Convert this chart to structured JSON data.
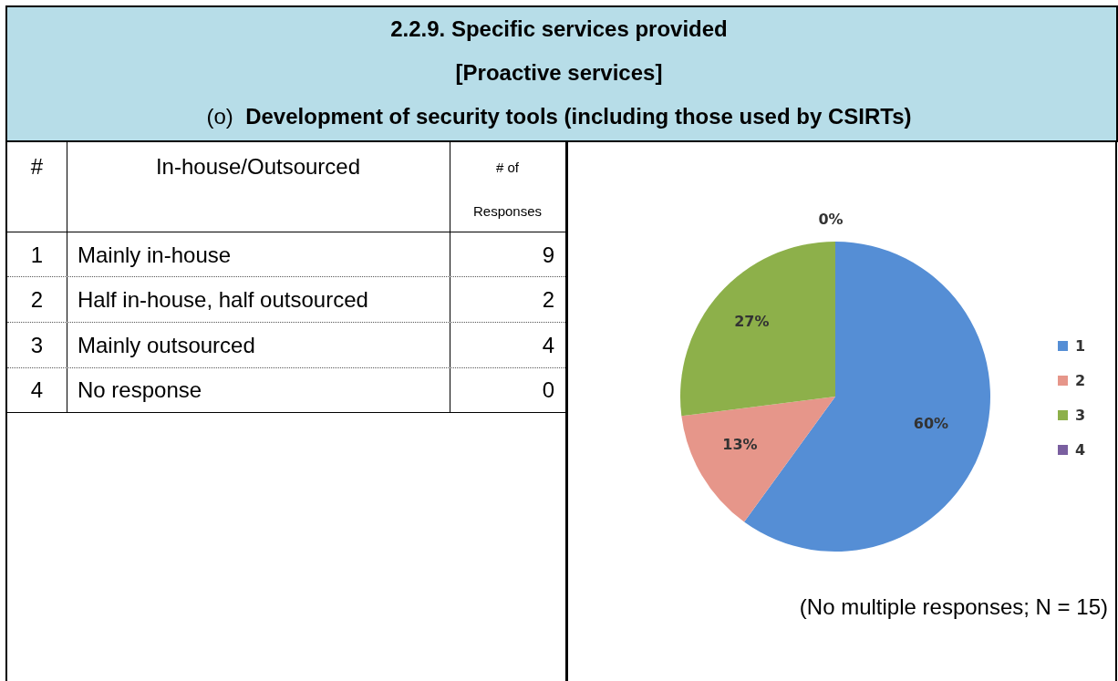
{
  "chart_data": {
    "type": "pie",
    "title": "2.2.9. Specific services provided",
    "subtitle": "[Proactive services]",
    "categories": [
      "1",
      "2",
      "3",
      "4"
    ],
    "values": [
      60,
      13,
      27,
      0
    ],
    "value_labels": [
      "60%",
      "13%",
      "27%",
      "0%"
    ],
    "colors": [
      "#558ed5",
      "#e6968a",
      "#8db04a",
      "#7a5fa0"
    ],
    "legend": "right",
    "annotations": [
      "(o)",
      "Development of security tools (including those used by CSIRTs)",
      "#",
      "In-house/Outsourced",
      "# of",
      "Responses",
      "Mainly in-house",
      "Half in-house, half outsourced",
      "Mainly outsourced",
      "No response",
      "(No multiple responses; N = 15)",
      "9",
      "2",
      "4",
      "0"
    ]
  }
}
